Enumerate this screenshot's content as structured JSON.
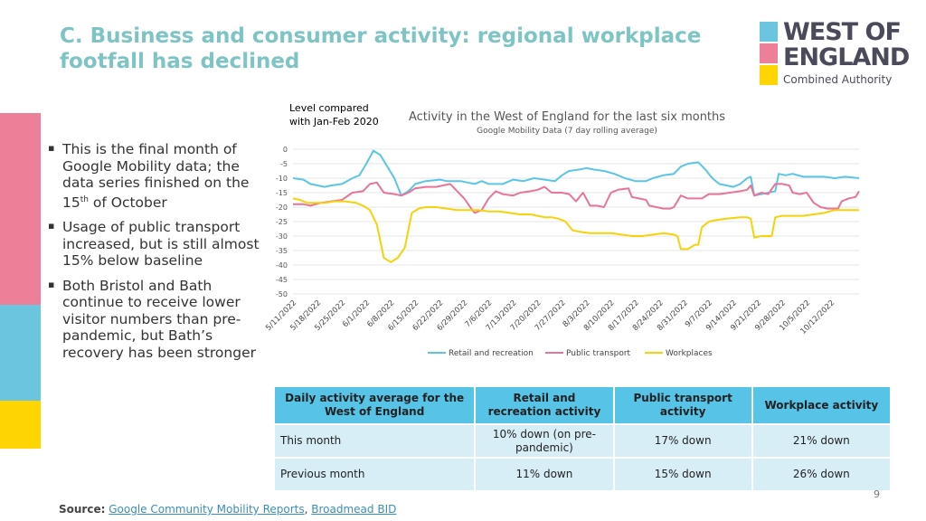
{
  "title": "C. Business and consumer activity: regional workplace footfall has declined",
  "logo": {
    "line1": "WEST OF",
    "line2": "ENGLAND",
    "line3": "Combined Authority",
    "colors": [
      "#6cc5df",
      "#ee7f98",
      "#ffd500"
    ]
  },
  "sidebar_colors": [
    "#ee7f98",
    "#6cc5df",
    "#ffd500"
  ],
  "bullets": [
    {
      "before": "This is the final month of Google Mobility data; the data series finished on the 15",
      "sup": "th",
      "after": " of October"
    },
    {
      "before": "Usage of public transport increased, but is still almost 15% below baseline",
      "sup": "",
      "after": ""
    },
    {
      "before": "Both Bristol and Bath continue to receive lower visitor numbers than pre-pandemic, but Bath’s recovery has been stronger",
      "sup": "",
      "after": ""
    }
  ],
  "chart_level_label": "Level compared with Jan-Feb 2020",
  "chart_data": {
    "type": "line",
    "title": "Activity in the West of England for the last six months",
    "subtitle": "Google Mobility Data (7 day rolling average)",
    "ylim": [
      -50,
      0
    ],
    "yticks": [
      0,
      -5,
      -10,
      -15,
      -20,
      -25,
      -30,
      -35,
      -40,
      -45,
      -50
    ],
    "x_count": 163,
    "xticks": [
      {
        "i": 0,
        "label": "5/11/2022"
      },
      {
        "i": 7,
        "label": "5/18/2022"
      },
      {
        "i": 14,
        "label": "5/25/2022"
      },
      {
        "i": 21,
        "label": "6/1/2022"
      },
      {
        "i": 28,
        "label": "6/8/2022"
      },
      {
        "i": 35,
        "label": "6/15/2022"
      },
      {
        "i": 42,
        "label": "6/22/2022"
      },
      {
        "i": 49,
        "label": "6/29/2022"
      },
      {
        "i": 56,
        "label": "7/6/2022"
      },
      {
        "i": 63,
        "label": "7/13/2022"
      },
      {
        "i": 70,
        "label": "7/20/2022"
      },
      {
        "i": 77,
        "label": "7/27/2022"
      },
      {
        "i": 84,
        "label": "8/3/2022"
      },
      {
        "i": 91,
        "label": "8/10/2022"
      },
      {
        "i": 98,
        "label": "8/17/2022"
      },
      {
        "i": 105,
        "label": "8/24/2022"
      },
      {
        "i": 112,
        "label": "8/31/2022"
      },
      {
        "i": 119,
        "label": "9/7/2022"
      },
      {
        "i": 126,
        "label": "9/14/2022"
      },
      {
        "i": 133,
        "label": "9/21/2022"
      },
      {
        "i": 140,
        "label": "9/28/2022"
      },
      {
        "i": 147,
        "label": "10/5/2022"
      },
      {
        "i": 154,
        "label": "10/12/2022"
      }
    ],
    "series": [
      {
        "name": "Retail and recreation",
        "color": "#5bc5e6",
        "points": [
          [
            0,
            -10
          ],
          [
            3,
            -10.5
          ],
          [
            5,
            -12
          ],
          [
            7,
            -12.5
          ],
          [
            9,
            -13
          ],
          [
            11,
            -12.5
          ],
          [
            14,
            -12
          ],
          [
            17,
            -10
          ],
          [
            19,
            -9
          ],
          [
            21,
            -5
          ],
          [
            23,
            -0.5
          ],
          [
            25,
            -2
          ],
          [
            27,
            -6
          ],
          [
            29,
            -10
          ],
          [
            30,
            -13
          ],
          [
            31,
            -16
          ],
          [
            33,
            -14.5
          ],
          [
            35,
            -12
          ],
          [
            38,
            -11
          ],
          [
            42,
            -10.5
          ],
          [
            44,
            -11
          ],
          [
            46,
            -11
          ],
          [
            48,
            -11
          ],
          [
            50,
            -11.5
          ],
          [
            52,
            -12
          ],
          [
            54,
            -11
          ],
          [
            56,
            -12
          ],
          [
            60,
            -12
          ],
          [
            63,
            -10.5
          ],
          [
            66,
            -11
          ],
          [
            69,
            -10
          ],
          [
            72,
            -10.5
          ],
          [
            75,
            -11
          ],
          [
            77,
            -9
          ],
          [
            79,
            -7.5
          ],
          [
            82,
            -7
          ],
          [
            84,
            -6.5
          ],
          [
            86,
            -7
          ],
          [
            89,
            -7.5
          ],
          [
            92,
            -8.5
          ],
          [
            95,
            -10
          ],
          [
            98,
            -11
          ],
          [
            101,
            -11
          ],
          [
            103,
            -10
          ],
          [
            106,
            -9
          ],
          [
            109,
            -8.5
          ],
          [
            111,
            -6
          ],
          [
            113,
            -5
          ],
          [
            116,
            -4.5
          ],
          [
            118,
            -7
          ],
          [
            120,
            -10
          ],
          [
            122,
            -12
          ],
          [
            124,
            -12.5
          ],
          [
            126,
            -13
          ],
          [
            128,
            -12
          ],
          [
            130,
            -10
          ],
          [
            131,
            -9.5
          ],
          [
            132,
            -16
          ],
          [
            134,
            -15.5
          ],
          [
            136,
            -15
          ],
          [
            138,
            -14.5
          ],
          [
            139,
            -8.5
          ],
          [
            141,
            -9
          ],
          [
            143,
            -8.5
          ],
          [
            146,
            -9.5
          ],
          [
            149,
            -9.5
          ],
          [
            152,
            -9.5
          ],
          [
            155,
            -10
          ],
          [
            158,
            -9.5
          ],
          [
            162,
            -10
          ]
        ]
      },
      {
        "name": "Public transport",
        "color": "#e8749a",
        "points": [
          [
            0,
            -19
          ],
          [
            3,
            -19
          ],
          [
            5,
            -19.5
          ],
          [
            8,
            -18.5
          ],
          [
            11,
            -18
          ],
          [
            14,
            -17.5
          ],
          [
            17,
            -15
          ],
          [
            20,
            -14.5
          ],
          [
            22,
            -12
          ],
          [
            24,
            -11.5
          ],
          [
            26,
            -15
          ],
          [
            29,
            -15.5
          ],
          [
            31,
            -16
          ],
          [
            33,
            -15
          ],
          [
            35,
            -13.5
          ],
          [
            38,
            -13
          ],
          [
            41,
            -13
          ],
          [
            43,
            -12.5
          ],
          [
            45,
            -12
          ],
          [
            47,
            -14.5
          ],
          [
            49,
            -17
          ],
          [
            51,
            -20.5
          ],
          [
            52,
            -22
          ],
          [
            54,
            -21
          ],
          [
            56,
            -17
          ],
          [
            58,
            -14.5
          ],
          [
            60,
            -15.5
          ],
          [
            63,
            -16
          ],
          [
            65,
            -15
          ],
          [
            68,
            -14.5
          ],
          [
            70,
            -14
          ],
          [
            72,
            -13
          ],
          [
            74,
            -15
          ],
          [
            77,
            -15
          ],
          [
            79,
            -15.5
          ],
          [
            81,
            -18
          ],
          [
            83,
            -15
          ],
          [
            85,
            -19.5
          ],
          [
            87,
            -19.5
          ],
          [
            89,
            -20
          ],
          [
            91,
            -15
          ],
          [
            93,
            -14
          ],
          [
            96,
            -13.5
          ],
          [
            97,
            -16.5
          ],
          [
            99,
            -17
          ],
          [
            101,
            -17.5
          ],
          [
            102,
            -19.5
          ],
          [
            104,
            -20
          ],
          [
            106,
            -20.5
          ],
          [
            108,
            -20.5
          ],
          [
            109,
            -20
          ],
          [
            111,
            -16
          ],
          [
            113,
            -17
          ],
          [
            115,
            -17
          ],
          [
            117,
            -17
          ],
          [
            119,
            -15.5
          ],
          [
            122,
            -15.5
          ],
          [
            125,
            -15
          ],
          [
            128,
            -14.5
          ],
          [
            130,
            -14
          ],
          [
            131,
            -12.5
          ],
          [
            132,
            -16
          ],
          [
            134,
            -15
          ],
          [
            136,
            -15.5
          ],
          [
            138,
            -12
          ],
          [
            140,
            -12
          ],
          [
            142,
            -12.5
          ],
          [
            143,
            -15
          ],
          [
            145,
            -15.5
          ],
          [
            147,
            -15
          ],
          [
            149,
            -18.5
          ],
          [
            151,
            -20
          ],
          [
            153,
            -20.5
          ],
          [
            156,
            -20.5
          ],
          [
            157,
            -18
          ],
          [
            159,
            -17
          ],
          [
            161,
            -16.5
          ],
          [
            162,
            -14.5
          ]
        ]
      },
      {
        "name": "Workplaces",
        "color": "#f5d20a",
        "points": [
          [
            0,
            -17
          ],
          [
            2,
            -17.5
          ],
          [
            4,
            -18.5
          ],
          [
            6,
            -18.5
          ],
          [
            9,
            -18.5
          ],
          [
            12,
            -18
          ],
          [
            15,
            -18
          ],
          [
            18,
            -18.5
          ],
          [
            20,
            -19.5
          ],
          [
            22,
            -21
          ],
          [
            24,
            -26
          ],
          [
            26,
            -37.5
          ],
          [
            28,
            -39
          ],
          [
            30,
            -37.5
          ],
          [
            32,
            -34
          ],
          [
            33,
            -28
          ],
          [
            34,
            -22
          ],
          [
            36,
            -20.5
          ],
          [
            38,
            -20
          ],
          [
            41,
            -20
          ],
          [
            44,
            -20.5
          ],
          [
            47,
            -21
          ],
          [
            50,
            -21
          ],
          [
            53,
            -21
          ],
          [
            56,
            -21.5
          ],
          [
            59,
            -21.5
          ],
          [
            62,
            -22
          ],
          [
            65,
            -22.5
          ],
          [
            68,
            -22.5
          ],
          [
            70,
            -23
          ],
          [
            72,
            -23.5
          ],
          [
            74,
            -23.5
          ],
          [
            76,
            -24
          ],
          [
            78,
            -25
          ],
          [
            80,
            -28
          ],
          [
            82,
            -28.5
          ],
          [
            85,
            -29
          ],
          [
            88,
            -29
          ],
          [
            91,
            -29
          ],
          [
            94,
            -29.5
          ],
          [
            97,
            -30
          ],
          [
            100,
            -30
          ],
          [
            103,
            -29.5
          ],
          [
            106,
            -29
          ],
          [
            109,
            -29.5
          ],
          [
            110,
            -30
          ],
          [
            111,
            -34.5
          ],
          [
            113,
            -34.5
          ],
          [
            115,
            -33
          ],
          [
            116,
            -33
          ],
          [
            117,
            -27
          ],
          [
            119,
            -25
          ],
          [
            121,
            -24.5
          ],
          [
            124,
            -24
          ],
          [
            128,
            -23.5
          ],
          [
            130,
            -23.5
          ],
          [
            131,
            -24
          ],
          [
            132,
            -30.5
          ],
          [
            134,
            -30
          ],
          [
            136,
            -30
          ],
          [
            137,
            -30
          ],
          [
            138,
            -23.5
          ],
          [
            140,
            -23
          ],
          [
            143,
            -23
          ],
          [
            146,
            -23
          ],
          [
            149,
            -22.5
          ],
          [
            152,
            -22
          ],
          [
            155,
            -21
          ],
          [
            158,
            -21
          ],
          [
            160,
            -21
          ],
          [
            162,
            -21
          ]
        ]
      }
    ]
  },
  "table": {
    "headers": [
      "Daily activity average for the West of England",
      "Retail and recreation activity",
      "Public transport activity",
      "Workplace activity"
    ],
    "rows": [
      [
        "This month",
        "10% down (on pre-pandemic)",
        "17% down",
        "21% down"
      ],
      [
        "Previous month",
        "11% down",
        "15% down",
        "26% down"
      ]
    ]
  },
  "page_number": "9",
  "source": {
    "label": "Source:",
    "link1": "Google Community Mobility Reports",
    "sep": ",",
    "link2": "Broadmead BID"
  }
}
